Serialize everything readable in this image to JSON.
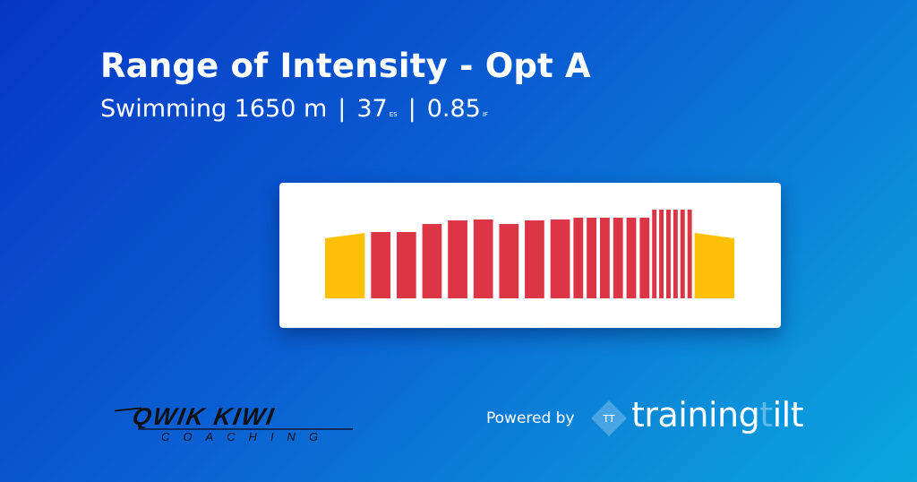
{
  "header": {
    "title": "Range of Intensity - Opt A",
    "sport": "Swimming 1650 m",
    "separator": "|",
    "es_value": "37",
    "es_label": "ES",
    "if_value": "0.85",
    "if_label": "IF"
  },
  "colors": {
    "warmup": "#FFC107",
    "main": "#DC3545",
    "background_start": "#0637c4",
    "background_end": "#0aa6df"
  },
  "chart_data": {
    "type": "bar",
    "title": "",
    "xlabel": "",
    "ylabel": "",
    "grid": false,
    "bars": [
      {
        "kind": "warmup",
        "duration": 45,
        "start": 67,
        "end": 73
      },
      {
        "kind": "main",
        "duration": 22,
        "value": 74
      },
      {
        "kind": "main",
        "duration": 22,
        "value": 74
      },
      {
        "kind": "main",
        "duration": 22,
        "value": 83
      },
      {
        "kind": "main",
        "duration": 22,
        "value": 87
      },
      {
        "kind": "main",
        "duration": 22,
        "value": 88
      },
      {
        "kind": "main",
        "duration": 22,
        "value": 83
      },
      {
        "kind": "main",
        "duration": 22,
        "value": 87
      },
      {
        "kind": "main",
        "duration": 22,
        "value": 88
      },
      {
        "kind": "main",
        "duration": 11,
        "value": 90
      },
      {
        "kind": "main",
        "duration": 11,
        "value": 90
      },
      {
        "kind": "main",
        "duration": 11,
        "value": 90
      },
      {
        "kind": "main",
        "duration": 11,
        "value": 90
      },
      {
        "kind": "main",
        "duration": 11,
        "value": 90
      },
      {
        "kind": "main",
        "duration": 11,
        "value": 90
      },
      {
        "kind": "main",
        "duration": 5,
        "value": 99
      },
      {
        "kind": "main",
        "duration": 5,
        "value": 99
      },
      {
        "kind": "main",
        "duration": 5,
        "value": 99
      },
      {
        "kind": "main",
        "duration": 5,
        "value": 99
      },
      {
        "kind": "main",
        "duration": 5,
        "value": 99
      },
      {
        "kind": "main",
        "duration": 5,
        "value": 99
      },
      {
        "kind": "cooldown",
        "duration": 45,
        "start": 73,
        "end": 67
      }
    ],
    "ylim": [
      0,
      100
    ]
  },
  "branding": {
    "coach_logo_name": "QWIK KIWI",
    "coach_logo_sub": "COACHING",
    "powered_by": "Powered by",
    "tt_mark": "TT",
    "brand_part1": "training",
    "brand_part2": "t",
    "brand_part3": "ilt"
  }
}
